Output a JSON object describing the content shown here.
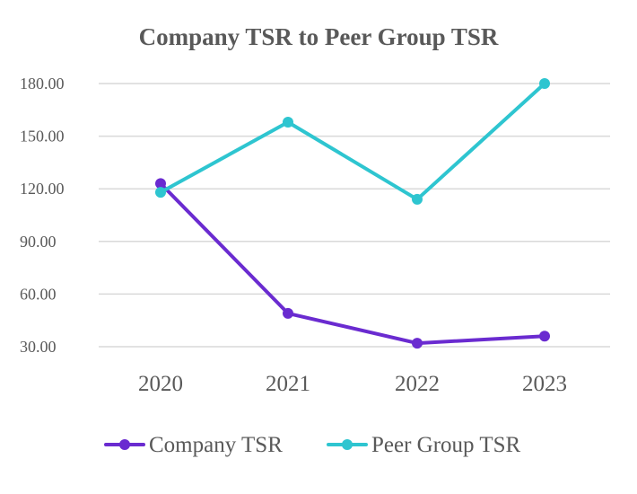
{
  "chart_data": {
    "type": "line",
    "title": "Company TSR to Peer Group TSR",
    "xlabel": "",
    "ylabel": "",
    "categories": [
      "2020",
      "2021",
      "2022",
      "2023"
    ],
    "yticks": [
      30,
      60,
      90,
      120,
      150,
      180
    ],
    "ytick_labels": [
      "30.00",
      "60.00",
      "90.00",
      "120.00",
      "150.00",
      "180.00"
    ],
    "ylim": [
      20,
      180
    ],
    "grid": true,
    "legend_position": "bottom",
    "series": [
      {
        "name": "Company TSR",
        "color": "#6a2bd0",
        "values": [
          123,
          49,
          32,
          36
        ]
      },
      {
        "name": "Peer Group TSR",
        "color": "#2ec5d0",
        "values": [
          118,
          158,
          114,
          180
        ]
      }
    ]
  }
}
